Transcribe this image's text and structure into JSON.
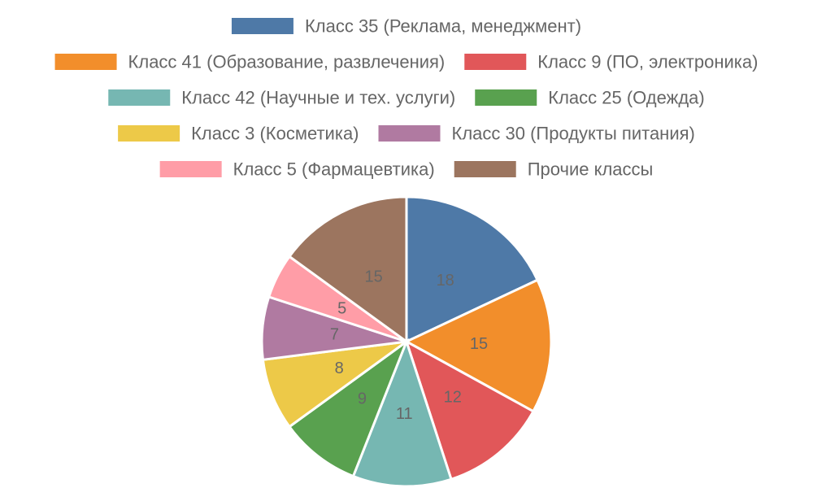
{
  "chart_data": {
    "type": "pie",
    "categories": [
      "Класс 35 (Реклама, менеджмент)",
      "Класс 41 (Образование, развлечения)",
      "Класс 9 (ПО, электроника)",
      "Класс 42 (Научные и тех. услуги)",
      "Класс 25 (Одежда)",
      "Класс 3 (Косметика)",
      "Класс 30 (Продукты питания)",
      "Класс 5 (Фармацевтика)",
      "Прочие классы"
    ],
    "values": [
      18,
      15,
      12,
      11,
      9,
      8,
      7,
      5,
      15
    ],
    "colors": [
      "#4e79a7",
      "#f28e2b",
      "#e15759",
      "#76b7b2",
      "#59a14f",
      "#edc948",
      "#b07aa1",
      "#ff9da7",
      "#9c755f"
    ],
    "legend_position": "top",
    "data_labels": true
  }
}
